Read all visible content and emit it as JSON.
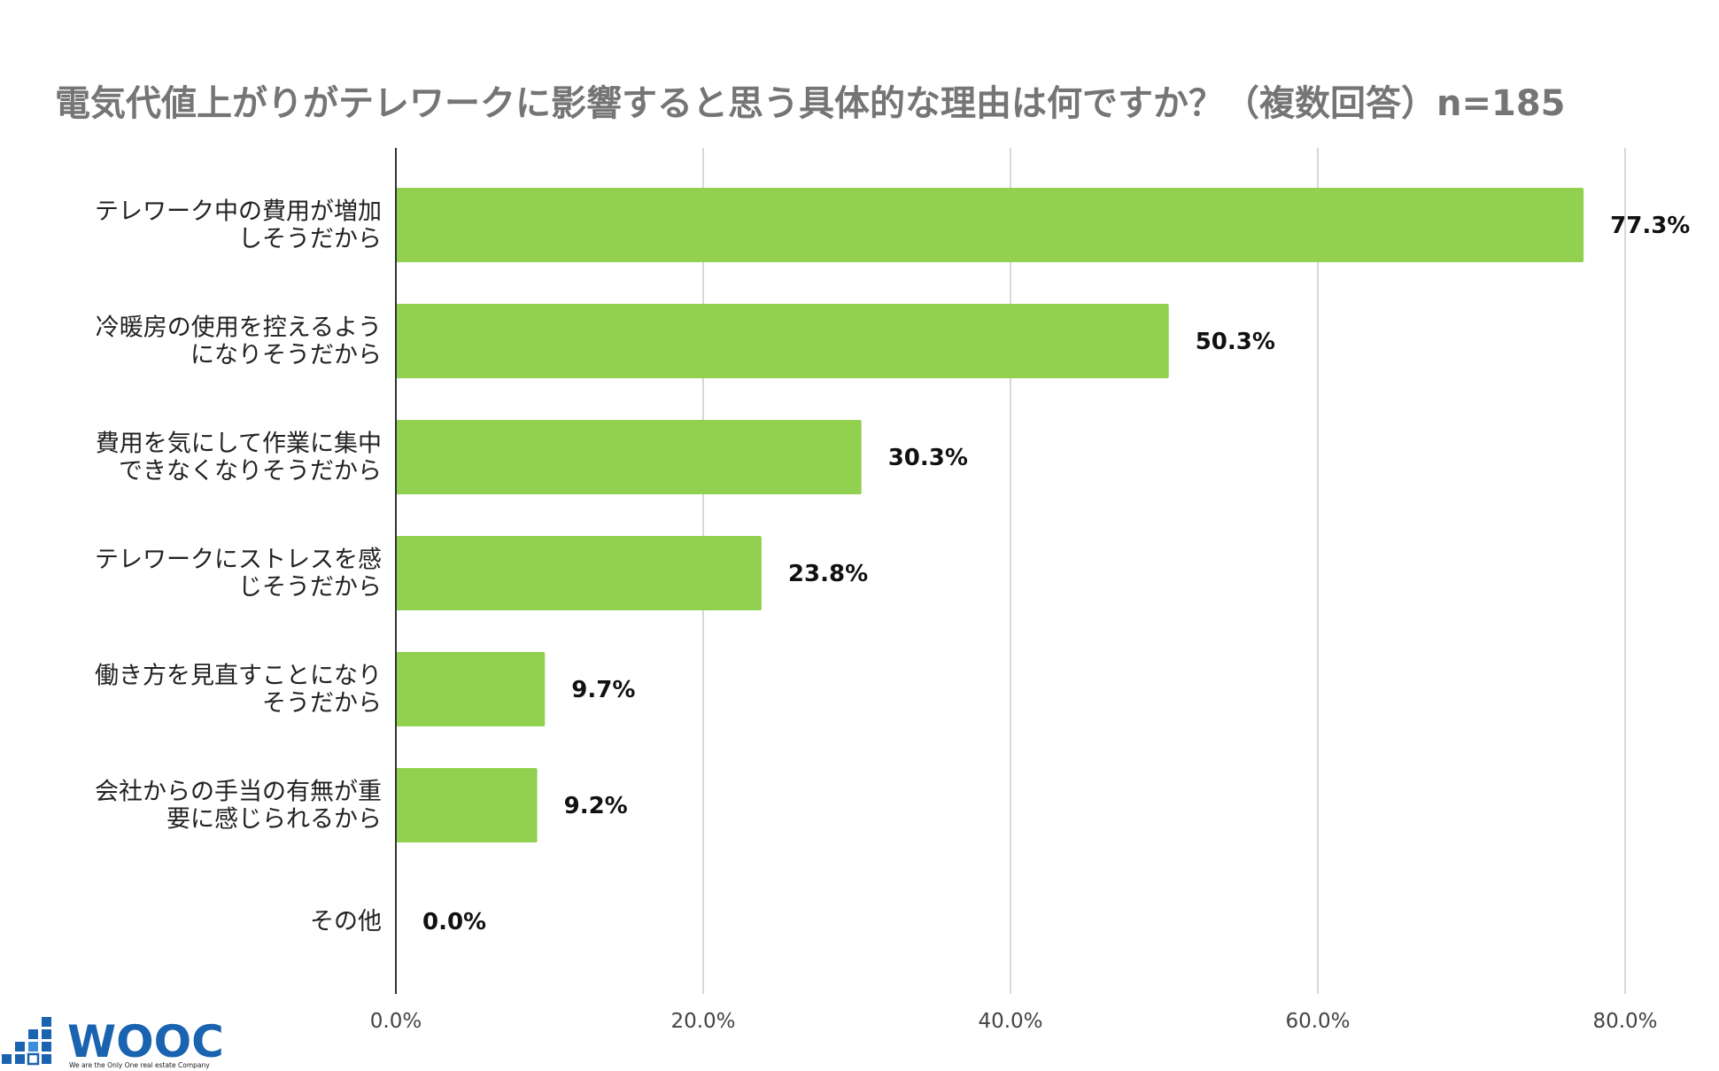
{
  "chart_data": {
    "type": "bar",
    "orientation": "horizontal",
    "title": "電気代値上がりがテレワークに影響すると思う具体的な理由は何ですか？（複数回答）n=185",
    "categories": [
      [
        "テレワーク中の費用が増加",
        "しそうだから"
      ],
      [
        "冷暖房の使用を控えるよう",
        "になりそうだから"
      ],
      [
        "費用を気にして作業に集中",
        "できなくなりそうだから"
      ],
      [
        "テレワークにストレスを感",
        "じそうだから"
      ],
      [
        "働き方を見直すことになり",
        "そうだから"
      ],
      [
        "会社からの手当の有無が重",
        "要に感じられるから"
      ],
      [
        "その他"
      ]
    ],
    "values": [
      77.3,
      50.3,
      30.3,
      23.8,
      9.7,
      9.2,
      0.0
    ],
    "value_labels": [
      "77.3%",
      "50.3%",
      "30.3%",
      "23.8%",
      "9.7%",
      "9.2%",
      "0.0%"
    ],
    "xlim": [
      0,
      80
    ],
    "xticks": [
      0,
      20,
      40,
      60,
      80
    ],
    "xtick_labels": [
      "0.0%",
      "20.0%",
      "40.0%",
      "60.0%",
      "80.0%"
    ],
    "xlabel": "",
    "ylabel": "",
    "grid": true,
    "bar_color": "#92d050"
  },
  "logo": {
    "name": "WOOC",
    "tagline": "We are the Only One real estate Company",
    "color": "#1a63b0"
  }
}
